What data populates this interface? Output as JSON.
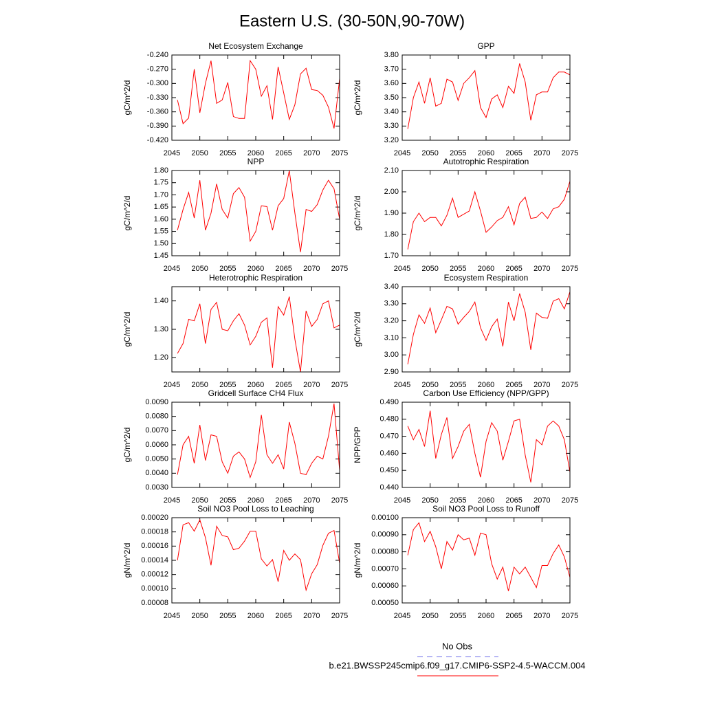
{
  "title": "Eastern U.S. (30-50N,90-70W)",
  "legend": [
    {
      "name": "No Obs",
      "color": "#6f6fe8",
      "dashed": true
    },
    {
      "name": "b.e21.BWSSP245cmip6.f09_g17.CMIP6-SSP2-4.5-WACCM.004",
      "color": "#ff0000",
      "dashed": false
    }
  ],
  "chart_data": [
    {
      "type": "line",
      "title": "Net Ecosystem Exchange",
      "y_label": "gC/m^2/d",
      "color": "#ff0000",
      "x": [
        2046,
        2047,
        2048,
        2049,
        2050,
        2051,
        2052,
        2053,
        2054,
        2055,
        2056,
        2057,
        2058,
        2059,
        2060,
        2061,
        2062,
        2063,
        2064,
        2065,
        2066,
        2067,
        2068,
        2069,
        2070,
        2071,
        2072,
        2073,
        2074,
        2075
      ],
      "values": [
        -0.335,
        -0.385,
        -0.373,
        -0.27,
        -0.362,
        -0.3,
        -0.252,
        -0.342,
        -0.335,
        -0.298,
        -0.37,
        -0.374,
        -0.374,
        -0.252,
        -0.27,
        -0.327,
        -0.305,
        -0.376,
        -0.265,
        -0.32,
        -0.376,
        -0.345,
        -0.28,
        -0.268,
        -0.313,
        -0.315,
        -0.325,
        -0.35,
        -0.395,
        -0.29
      ],
      "xlim": [
        2045,
        2075
      ],
      "xticks": [
        2045,
        2050,
        2055,
        2060,
        2065,
        2070,
        2075
      ],
      "ylim": [
        -0.42,
        -0.24
      ],
      "yticks": [
        {
          "value": -0.42,
          "label": "-0.420"
        },
        {
          "value": -0.39,
          "label": "-0.390"
        },
        {
          "value": -0.36,
          "label": "-0.360"
        },
        {
          "value": -0.33,
          "label": "-0.330"
        },
        {
          "value": -0.3,
          "label": "-0.300"
        },
        {
          "value": -0.27,
          "label": "-0.270"
        },
        {
          "value": -0.24,
          "label": "-0.240"
        }
      ]
    },
    {
      "type": "line",
      "title": "GPP",
      "y_label": "gC/m^2/d",
      "color": "#ff0000",
      "x": [
        2046,
        2047,
        2048,
        2049,
        2050,
        2051,
        2052,
        2053,
        2054,
        2055,
        2056,
        2057,
        2058,
        2059,
        2060,
        2061,
        2062,
        2063,
        2064,
        2065,
        2066,
        2067,
        2068,
        2069,
        2070,
        2071,
        2072,
        2073,
        2074,
        2075
      ],
      "values": [
        3.28,
        3.5,
        3.61,
        3.46,
        3.64,
        3.44,
        3.46,
        3.63,
        3.61,
        3.48,
        3.6,
        3.64,
        3.69,
        3.43,
        3.36,
        3.49,
        3.52,
        3.43,
        3.58,
        3.53,
        3.74,
        3.61,
        3.34,
        3.52,
        3.54,
        3.54,
        3.64,
        3.68,
        3.68,
        3.66
      ],
      "xlim": [
        2045,
        2075
      ],
      "xticks": [
        2045,
        2050,
        2055,
        2060,
        2065,
        2070,
        2075
      ],
      "ylim": [
        3.2,
        3.8
      ],
      "yticks": [
        {
          "value": 3.2,
          "label": "3.20"
        },
        {
          "value": 3.3,
          "label": "3.30"
        },
        {
          "value": 3.4,
          "label": "3.40"
        },
        {
          "value": 3.5,
          "label": "3.50"
        },
        {
          "value": 3.6,
          "label": "3.60"
        },
        {
          "value": 3.7,
          "label": "3.70"
        },
        {
          "value": 3.8,
          "label": "3.80"
        }
      ]
    },
    {
      "type": "line",
      "title": "NPP",
      "y_label": "gC/m^2/d",
      "color": "#ff0000",
      "x": [
        2046,
        2047,
        2048,
        2049,
        2050,
        2051,
        2052,
        2053,
        2054,
        2055,
        2056,
        2057,
        2058,
        2059,
        2060,
        2061,
        2062,
        2063,
        2064,
        2065,
        2066,
        2067,
        2068,
        2069,
        2070,
        2071,
        2072,
        2073,
        2074,
        2075
      ],
      "values": [
        1.555,
        1.64,
        1.71,
        1.605,
        1.76,
        1.555,
        1.625,
        1.745,
        1.64,
        1.605,
        1.705,
        1.73,
        1.69,
        1.51,
        1.55,
        1.655,
        1.652,
        1.555,
        1.655,
        1.685,
        1.8,
        1.625,
        1.465,
        1.64,
        1.632,
        1.66,
        1.72,
        1.76,
        1.725,
        1.6
      ],
      "xlim": [
        2045,
        2075
      ],
      "xticks": [
        2045,
        2050,
        2055,
        2060,
        2065,
        2070,
        2075
      ],
      "ylim": [
        1.45,
        1.8
      ],
      "yticks": [
        {
          "value": 1.45,
          "label": "1.45"
        },
        {
          "value": 1.5,
          "label": "1.50"
        },
        {
          "value": 1.55,
          "label": "1.55"
        },
        {
          "value": 1.6,
          "label": "1.60"
        },
        {
          "value": 1.65,
          "label": "1.65"
        },
        {
          "value": 1.7,
          "label": "1.70"
        },
        {
          "value": 1.75,
          "label": "1.75"
        },
        {
          "value": 1.8,
          "label": "1.80"
        }
      ]
    },
    {
      "type": "line",
      "title": "Autotrophic Respiration",
      "y_label": "gC/m^2/d",
      "color": "#ff0000",
      "x": [
        2046,
        2047,
        2048,
        2049,
        2050,
        2051,
        2052,
        2053,
        2054,
        2055,
        2056,
        2057,
        2058,
        2059,
        2060,
        2061,
        2062,
        2063,
        2064,
        2065,
        2066,
        2067,
        2068,
        2069,
        2070,
        2071,
        2072,
        2073,
        2074,
        2075
      ],
      "values": [
        1.73,
        1.86,
        1.9,
        1.86,
        1.88,
        1.88,
        1.84,
        1.89,
        1.97,
        1.88,
        1.895,
        1.91,
        2.0,
        1.91,
        1.81,
        1.835,
        1.865,
        1.88,
        1.93,
        1.845,
        1.945,
        1.975,
        1.875,
        1.88,
        1.905,
        1.875,
        1.92,
        1.93,
        1.965,
        2.05
      ],
      "xlim": [
        2045,
        2075
      ],
      "xticks": [
        2045,
        2050,
        2055,
        2060,
        2065,
        2070,
        2075
      ],
      "ylim": [
        1.7,
        2.1
      ],
      "yticks": [
        {
          "value": 1.7,
          "label": "1.70"
        },
        {
          "value": 1.8,
          "label": "1.80"
        },
        {
          "value": 1.9,
          "label": "1.90"
        },
        {
          "value": 2.0,
          "label": "2.00"
        },
        {
          "value": 2.1,
          "label": "2.10"
        }
      ]
    },
    {
      "type": "line",
      "title": "Heterotrophic Respiration",
      "y_label": "gC/m^2/d",
      "color": "#ff0000",
      "x": [
        2046,
        2047,
        2048,
        2049,
        2050,
        2051,
        2052,
        2053,
        2054,
        2055,
        2056,
        2057,
        2058,
        2059,
        2060,
        2061,
        2062,
        2063,
        2064,
        2065,
        2066,
        2067,
        2068,
        2069,
        2070,
        2071,
        2072,
        2073,
        2074,
        2075
      ],
      "values": [
        1.215,
        1.25,
        1.335,
        1.33,
        1.39,
        1.25,
        1.37,
        1.395,
        1.3,
        1.295,
        1.33,
        1.355,
        1.315,
        1.245,
        1.275,
        1.325,
        1.34,
        1.165,
        1.38,
        1.35,
        1.415,
        1.265,
        1.15,
        1.365,
        1.31,
        1.335,
        1.39,
        1.4,
        1.305,
        1.315
      ],
      "xlim": [
        2045,
        2075
      ],
      "xticks": [
        2045,
        2050,
        2055,
        2060,
        2065,
        2070,
        2075
      ],
      "ylim": [
        1.15,
        1.45
      ],
      "yticks": [
        {
          "value": 1.2,
          "label": "1.20"
        },
        {
          "value": 1.3,
          "label": "1.30"
        },
        {
          "value": 1.4,
          "label": "1.40"
        }
      ]
    },
    {
      "type": "line",
      "title": "Ecosystem Respiration",
      "y_label": "gC/m^2/d",
      "color": "#ff0000",
      "x": [
        2046,
        2047,
        2048,
        2049,
        2050,
        2051,
        2052,
        2053,
        2054,
        2055,
        2056,
        2057,
        2058,
        2059,
        2060,
        2061,
        2062,
        2063,
        2064,
        2065,
        2066,
        2067,
        2068,
        2069,
        2070,
        2071,
        2072,
        2073,
        2074,
        2075
      ],
      "values": [
        2.945,
        3.12,
        3.235,
        3.185,
        3.275,
        3.13,
        3.205,
        3.285,
        3.27,
        3.18,
        3.22,
        3.255,
        3.31,
        3.16,
        3.085,
        3.165,
        3.21,
        3.05,
        3.31,
        3.2,
        3.36,
        3.25,
        3.03,
        3.245,
        3.22,
        3.215,
        3.315,
        3.33,
        3.27,
        3.37
      ],
      "xlim": [
        2045,
        2075
      ],
      "xticks": [
        2045,
        2050,
        2055,
        2060,
        2065,
        2070,
        2075
      ],
      "ylim": [
        2.9,
        3.4
      ],
      "yticks": [
        {
          "value": 2.9,
          "label": "2.90"
        },
        {
          "value": 3.0,
          "label": "3.00"
        },
        {
          "value": 3.1,
          "label": "3.10"
        },
        {
          "value": 3.2,
          "label": "3.20"
        },
        {
          "value": 3.3,
          "label": "3.30"
        },
        {
          "value": 3.4,
          "label": "3.40"
        }
      ]
    },
    {
      "type": "line",
      "title": "Gridcell Surface CH4 Flux",
      "y_label": "gC/m^2/d",
      "color": "#ff0000",
      "x": [
        2046,
        2047,
        2048,
        2049,
        2050,
        2051,
        2052,
        2053,
        2054,
        2055,
        2056,
        2057,
        2058,
        2059,
        2060,
        2061,
        2062,
        2063,
        2064,
        2065,
        2066,
        2067,
        2068,
        2069,
        2070,
        2071,
        2072,
        2073,
        2074,
        2075
      ],
      "values": [
        0.0039,
        0.006,
        0.0066,
        0.0047,
        0.0074,
        0.0049,
        0.0067,
        0.0066,
        0.0048,
        0.004,
        0.0052,
        0.0055,
        0.005,
        0.0037,
        0.0048,
        0.0081,
        0.0053,
        0.0047,
        0.0053,
        0.0043,
        0.0076,
        0.0061,
        0.004,
        0.0039,
        0.0047,
        0.0052,
        0.005,
        0.0066,
        0.0089,
        0.0042
      ],
      "xlim": [
        2045,
        2075
      ],
      "xticks": [
        2045,
        2050,
        2055,
        2060,
        2065,
        2070,
        2075
      ],
      "ylim": [
        0.003,
        0.009
      ],
      "yticks": [
        {
          "value": 0.003,
          "label": "0.0030"
        },
        {
          "value": 0.004,
          "label": "0.0040"
        },
        {
          "value": 0.005,
          "label": "0.0050"
        },
        {
          "value": 0.006,
          "label": "0.0060"
        },
        {
          "value": 0.007,
          "label": "0.0070"
        },
        {
          "value": 0.008,
          "label": "0.0080"
        },
        {
          "value": 0.009,
          "label": "0.0090"
        }
      ]
    },
    {
      "type": "line",
      "title": "Carbon Use Efficiency (NPP/GPP)",
      "y_label": "NPP/GPP",
      "color": "#ff0000",
      "x": [
        2046,
        2047,
        2048,
        2049,
        2050,
        2051,
        2052,
        2053,
        2054,
        2055,
        2056,
        2057,
        2058,
        2059,
        2060,
        2061,
        2062,
        2063,
        2064,
        2065,
        2066,
        2067,
        2068,
        2069,
        2070,
        2071,
        2072,
        2073,
        2074,
        2075
      ],
      "values": [
        0.476,
        0.468,
        0.474,
        0.464,
        0.485,
        0.457,
        0.471,
        0.481,
        0.457,
        0.464,
        0.473,
        0.477,
        0.46,
        0.446,
        0.467,
        0.478,
        0.473,
        0.456,
        0.467,
        0.479,
        0.48,
        0.459,
        0.443,
        0.468,
        0.465,
        0.476,
        0.479,
        0.476,
        0.468,
        0.449
      ],
      "xlim": [
        2045,
        2075
      ],
      "xticks": [
        2045,
        2050,
        2055,
        2060,
        2065,
        2070,
        2075
      ],
      "ylim": [
        0.44,
        0.49
      ],
      "yticks": [
        {
          "value": 0.44,
          "label": "0.440"
        },
        {
          "value": 0.45,
          "label": "0.450"
        },
        {
          "value": 0.46,
          "label": "0.460"
        },
        {
          "value": 0.47,
          "label": "0.470"
        },
        {
          "value": 0.48,
          "label": "0.480"
        },
        {
          "value": 0.49,
          "label": "0.490"
        }
      ]
    },
    {
      "type": "line",
      "title": "Soil NO3 Pool Loss to Leaching",
      "y_label": "gN/m^2/d",
      "color": "#ff0000",
      "x": [
        2046,
        2047,
        2048,
        2049,
        2050,
        2051,
        2052,
        2053,
        2054,
        2055,
        2056,
        2057,
        2058,
        2059,
        2060,
        2061,
        2062,
        2063,
        2064,
        2065,
        2066,
        2067,
        2068,
        2069,
        2070,
        2071,
        2072,
        2073,
        2074,
        2075
      ],
      "values": [
        0.00014,
        0.00019,
        0.000193,
        0.000181,
        0.000197,
        0.000172,
        0.000133,
        0.000188,
        0.000175,
        0.000173,
        0.000155,
        0.000157,
        0.000167,
        0.000181,
        0.000181,
        0.000142,
        0.000132,
        0.000141,
        0.00011,
        0.000154,
        0.00014,
        0.000149,
        0.000141,
        9.8e-05,
        0.000121,
        0.000134,
        0.000161,
        0.000178,
        0.000182,
        0.000136
      ],
      "xlim": [
        2045,
        2075
      ],
      "xticks": [
        2045,
        2050,
        2055,
        2060,
        2065,
        2070,
        2075
      ],
      "ylim": [
        8e-05,
        0.0002
      ],
      "yticks": [
        {
          "value": 8e-05,
          "label": "0.00008"
        },
        {
          "value": 0.0001,
          "label": "0.00010"
        },
        {
          "value": 0.00012,
          "label": "0.00012"
        },
        {
          "value": 0.00014,
          "label": "0.00014"
        },
        {
          "value": 0.00016,
          "label": "0.00016"
        },
        {
          "value": 0.00018,
          "label": "0.00018"
        },
        {
          "value": 0.0002,
          "label": "0.00020"
        }
      ]
    },
    {
      "type": "line",
      "title": "Soil NO3 Pool Loss to Runoff",
      "y_label": "gN/m^2/d",
      "color": "#ff0000",
      "x": [
        2046,
        2047,
        2048,
        2049,
        2050,
        2051,
        2052,
        2053,
        2054,
        2055,
        2056,
        2057,
        2058,
        2059,
        2060,
        2061,
        2062,
        2063,
        2064,
        2065,
        2066,
        2067,
        2068,
        2069,
        2070,
        2071,
        2072,
        2073,
        2074,
        2075
      ],
      "values": [
        0.00078,
        0.00093,
        0.00097,
        0.00086,
        0.00092,
        0.00083,
        0.0007,
        0.00086,
        0.00081,
        0.0009,
        0.00087,
        0.00088,
        0.00078,
        0.00091,
        0.0009,
        0.00073,
        0.00064,
        0.00071,
        0.00057,
        0.00071,
        0.00067,
        0.00071,
        0.00065,
        0.00059,
        0.00072,
        0.00072,
        0.00079,
        0.00084,
        0.00077,
        0.00065
      ],
      "xlim": [
        2045,
        2075
      ],
      "xticks": [
        2045,
        2050,
        2055,
        2060,
        2065,
        2070,
        2075
      ],
      "ylim": [
        0.0005,
        0.001
      ],
      "yticks": [
        {
          "value": 0.0005,
          "label": "0.00050"
        },
        {
          "value": 0.0006,
          "label": "0.00060"
        },
        {
          "value": 0.0007,
          "label": "0.00070"
        },
        {
          "value": 0.0008,
          "label": "0.00080"
        },
        {
          "value": 0.0009,
          "label": "0.00090"
        },
        {
          "value": 0.001,
          "label": "0.00100"
        }
      ]
    }
  ]
}
